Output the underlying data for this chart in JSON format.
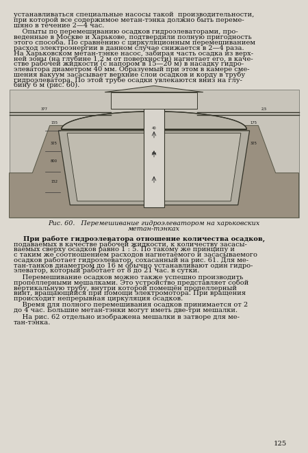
{
  "bg_color": "#ddd9d0",
  "text_color": "#111111",
  "title_text_line1": "Рис. 60.   Перемешивание гидроэлеватором на харьковских",
  "title_text_line2": "метан-тэнках",
  "page_number": "125",
  "para1_lines": [
    "устанавливаться специальные насосы такой  производительности,",
    "при которой все содержимое метан-тэнка должно быть переме-",
    "шяно в течение 2—4 час."
  ],
  "para2_lines": [
    "    Опыты по перемешиванию осадков гидроэлеваторами, про-",
    "веденные в Москве и Харькове, подтвердили полную пригодность",
    "этого способа. По сравнению с циркуляционным перемешиванием",
    "расход электроэнергии в данном случае снижается в 2—4 раза.",
    "На Харьковском метан-тэнке насос, забирая часть осадка из верх-",
    "ней зоны (на глубине 1,2 м от поверхности) нагнетает его, в каче-",
    "стве рабочей жидкости (с напором в 15—20 м) в насадку гидро-",
    "элеватора диаметром 40 мм. Образуемый при этом в камере сме-",
    "шения вакуум засасывает верхние слои осадков и корду в трубу",
    "гидроэлеватора. По этой трубе осадки увлекаются вниз на глу-",
    "бину 6 м (рис. 60)."
  ],
  "para3_lines": [
    "    При работе гидроэлеватора отношение количества осадков,",
    "подаваемых в качестве рабочей жидкости, к количеству засасы-",
    "ваемых сверху осадков равно 1 : 5. По такому же принципу и",
    "с таким же соотношением расходов нагнетаемого и засасываемого",
    "осадков работает гидроэлеватор, сохасанный на рис. 61. Для ме-",
    "тан-танков диаметром до 16 м обычно устанавливают один гидро-",
    "элеватор, который работает от 8 до 21 час. в сутки."
  ],
  "para4_lines": [
    "    Перемешивание осадков можно также успешно производить",
    "пропеллерными мешалками. Это устройство представляет собой",
    "вертикальную трубу, внутри которой помещён пропеллерный",
    "винт, вращающийся при помощи электромотора. При вращения",
    "происходит непрерывная циркуляция осадков."
  ],
  "para5_lines": [
    "    Время для полного перемешивания осадков принимается от 2",
    "до 4 час. Большие метан-тэнки могут иметь две-три мешалки."
  ],
  "para6_lines": [
    "    На рис. 62 отдельно изображена мешалки в затворе для ме-",
    "тан-тэнка."
  ],
  "font_size_body": 7.1,
  "font_size_caption": 6.9,
  "font_size_page": 7.2,
  "diagram_bg": "#c8c4ba",
  "earth_color": "#9a9080",
  "tank_color": "#b0aca0",
  "pipe_color": "#d8d4cc"
}
